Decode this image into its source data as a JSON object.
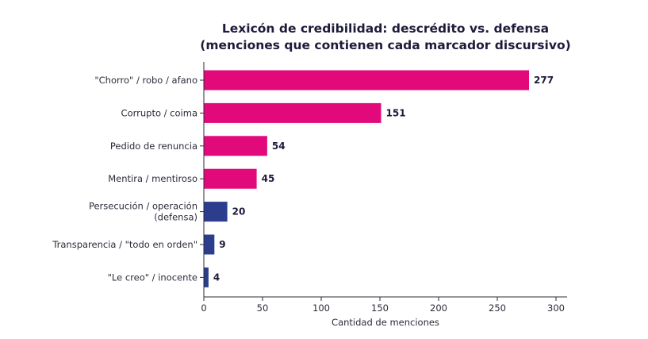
{
  "chart_data": {
    "type": "bar",
    "orientation": "horizontal",
    "title": [
      "Lexicón de credibilidad: descrédito vs. defensa",
      "(menciones que contienen cada marcador discursivo)"
    ],
    "xlabel": "Cantidad de menciones",
    "ylabel": "",
    "xlim": [
      0,
      310
    ],
    "xticks": [
      0,
      50,
      100,
      150,
      200,
      250,
      300
    ],
    "grid": false,
    "categories": [
      "\"Chorro\" / robo / afano",
      "Corrupto / coima",
      "Pedido de renuncia",
      "Mentira / mentiroso",
      "Persecución / operación (defensa)",
      "Transparencia / \"todo en orden\"",
      "\"Le creo\" / inocente"
    ],
    "category_lines": [
      [
        "\"Chorro\" / robo / afano"
      ],
      [
        "Corrupto / coima"
      ],
      [
        "Pedido de renuncia"
      ],
      [
        "Mentira / mentiroso"
      ],
      [
        "Persecución / operación",
        "(defensa)"
      ],
      [
        "Transparencia / \"todo en orden\""
      ],
      [
        "\"Le creo\" / inocente"
      ]
    ],
    "values": [
      277,
      151,
      54,
      45,
      20,
      9,
      4
    ],
    "groups": [
      "descredito",
      "descredito",
      "descredito",
      "descredito",
      "defensa",
      "defensa",
      "defensa"
    ],
    "colors": {
      "descredito": "#e2097a",
      "defensa": "#2b3d8c"
    }
  }
}
